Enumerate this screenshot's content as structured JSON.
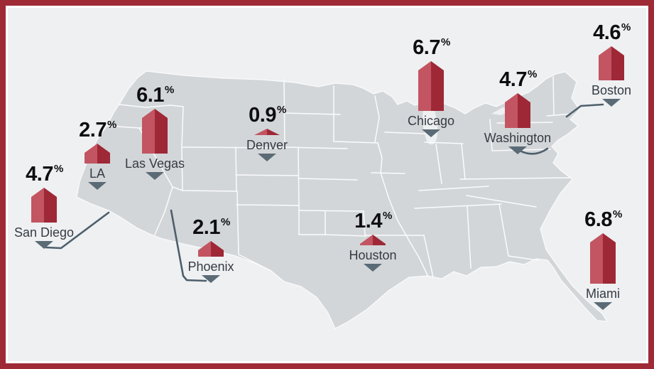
{
  "chart_data": {
    "type": "bar",
    "variant": "map-infographic",
    "region": "United States",
    "categories": [
      "San Diego",
      "LA",
      "Las Vegas",
      "Denver",
      "Phoenix",
      "Houston",
      "Chicago",
      "Washington",
      "Boston",
      "Miami"
    ],
    "values": [
      4.7,
      2.7,
      6.1,
      0.9,
      2.1,
      1.4,
      6.7,
      4.7,
      4.6,
      6.8
    ],
    "unit": "%",
    "title": "",
    "legend": "none",
    "grid": "off"
  },
  "labels": {
    "percent": "%"
  },
  "cities": [
    {
      "name": "San Diego",
      "value": "4.7"
    },
    {
      "name": "LA",
      "value": "2.7"
    },
    {
      "name": "Las Vegas",
      "value": "6.1"
    },
    {
      "name": "Denver",
      "value": "0.9"
    },
    {
      "name": "Phoenix",
      "value": "2.1"
    },
    {
      "name": "Houston",
      "value": "1.4"
    },
    {
      "name": "Chicago",
      "value": "6.7"
    },
    {
      "name": "Washington",
      "value": "4.7"
    },
    {
      "name": "Boston",
      "value": "4.6"
    },
    {
      "name": "Miami",
      "value": "6.8"
    }
  ],
  "colors": {
    "frame": "#9e2a35",
    "background": "#eef0f2",
    "map_land": "#d3d6d9",
    "map_border": "#fafbfc",
    "bar_light": "#c25561",
    "bar_dark": "#9e2836",
    "value_text": "#0e0e10",
    "city_text": "#363b42",
    "pointer": "#5a6b76",
    "leader_line": "#4e5f6b"
  }
}
